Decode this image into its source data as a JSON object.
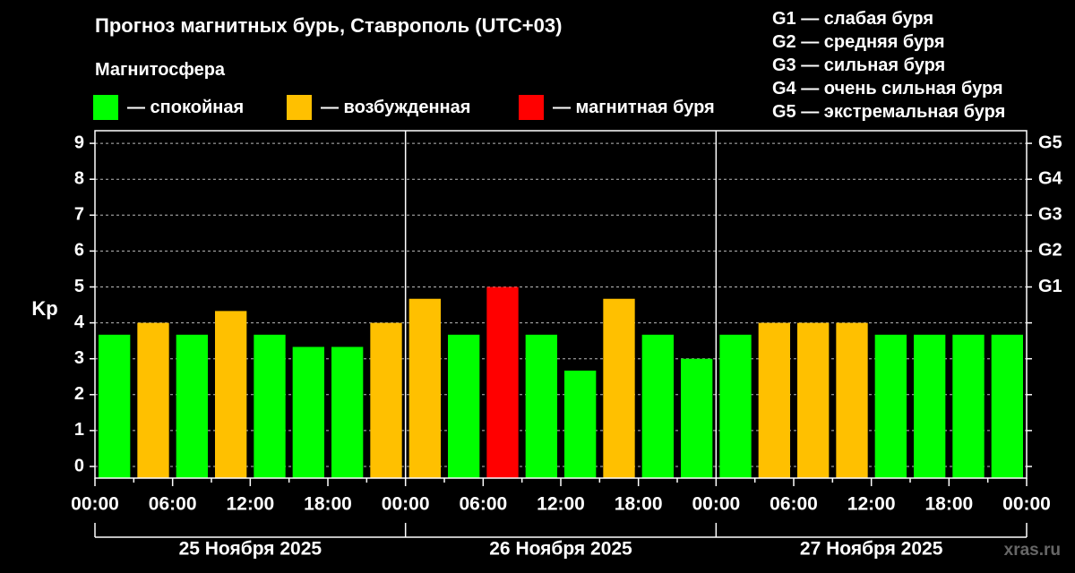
{
  "header": {
    "title": "Прогноз магнитных бурь, Ставрополь (UTC+03)",
    "subtitle": "Магнитосфера"
  },
  "legend": [
    {
      "label": "— спокойная",
      "color": "#00ff00"
    },
    {
      "label": "— возбужденная",
      "color": "#ffc000"
    },
    {
      "label": "— магнитная буря",
      "color": "#ff0000"
    }
  ],
  "g_scale": [
    "G1 — слабая буря",
    "G2 — средняя буря",
    "G3 — сильная буря",
    "G4 — очень сильная буря",
    "G5 — экстремальная буря"
  ],
  "watermark": "xras.ru",
  "chart_data": {
    "type": "bar",
    "ylabel": "Kp",
    "ylim": [
      0,
      9
    ],
    "y_ticks": [
      "0",
      "1",
      "2",
      "3",
      "4",
      "5",
      "6",
      "7",
      "8",
      "9"
    ],
    "right_ticks": [
      {
        "value": 5,
        "label": "G1"
      },
      {
        "value": 6,
        "label": "G2"
      },
      {
        "value": 7,
        "label": "G3"
      },
      {
        "value": 8,
        "label": "G4"
      },
      {
        "value": 9,
        "label": "G5"
      }
    ],
    "x_tick_labels": [
      "00:00",
      "06:00",
      "12:00",
      "18:00",
      "00:00",
      "06:00",
      "12:00",
      "18:00",
      "00:00",
      "06:00",
      "12:00",
      "18:00",
      "00:00"
    ],
    "days": [
      "25 Ноября 2025",
      "26 Ноября 2025",
      "27 Ноября 2025"
    ],
    "grid": true,
    "values": [
      3.67,
      4.0,
      3.67,
      4.33,
      3.67,
      3.33,
      3.33,
      4.0,
      4.67,
      3.67,
      5.0,
      3.67,
      2.67,
      4.67,
      3.67,
      3.0,
      3.67,
      4.0,
      4.0,
      4.0,
      3.67,
      3.67,
      3.67,
      3.67
    ],
    "status": [
      "спокойная",
      "возбужденная",
      "спокойная",
      "возбужденная",
      "спокойная",
      "спокойная",
      "спокойная",
      "возбужденная",
      "возбужденная",
      "спокойная",
      "магнитная буря",
      "спокойная",
      "спокойная",
      "возбужденная",
      "спокойная",
      "спокойная",
      "спокойная",
      "возбужденная",
      "возбужденная",
      "возбужденная",
      "спокойная",
      "спокойная",
      "спокойная",
      "спокойная"
    ],
    "colors": {
      "спокойная": "#00ff00",
      "возбужденная": "#ffc000",
      "магнитная буря": "#ff0000",
      "grid": "#bbbbbb",
      "axis": "#ffffff"
    }
  }
}
